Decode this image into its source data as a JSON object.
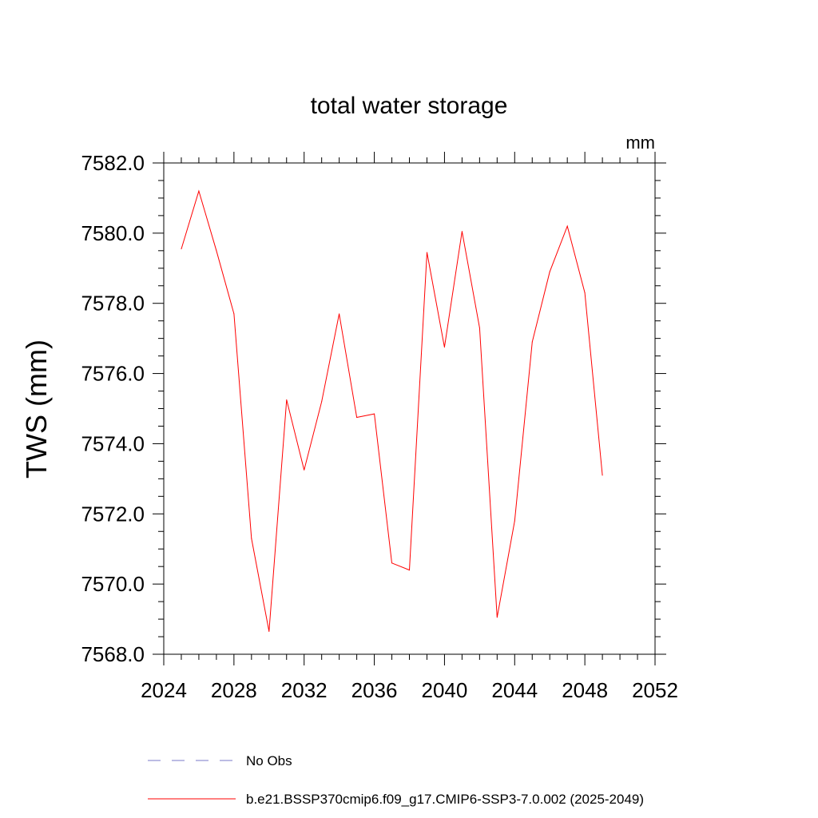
{
  "chart_data": {
    "type": "line",
    "title": "total water storage",
    "units": "mm",
    "xlabel": "",
    "ylabel": "TWS  (mm)",
    "xlim": [
      2024,
      2052
    ],
    "ylim": [
      7568,
      7582
    ],
    "x_ticks": [
      2024,
      2028,
      2032,
      2036,
      2040,
      2044,
      2048,
      2052
    ],
    "x_tick_labels": [
      "2024",
      "2028",
      "2032",
      "2036",
      "2040",
      "2044",
      "2048",
      "2052"
    ],
    "y_ticks": [
      7568,
      7570,
      7572,
      7574,
      7576,
      7578,
      7580,
      7582
    ],
    "y_tick_labels": [
      "7568.0",
      "7570.0",
      "7572.0",
      "7574.0",
      "7576.0",
      "7578.0",
      "7580.0",
      "7582.0"
    ],
    "grid": false,
    "series": [
      {
        "name": "b.e21.BSSP370cmip6.f09_g17.CMIP6-SSP3-7.0.002 (2025-2049)",
        "color": "#ff0000",
        "dash": "solid",
        "x": [
          2025,
          2026,
          2027,
          2028,
          2029,
          2030,
          2031,
          2032,
          2033,
          2034,
          2035,
          2036,
          2037,
          2038,
          2039,
          2040,
          2041,
          2042,
          2043,
          2044,
          2045,
          2046,
          2047,
          2048,
          2049
        ],
        "values": [
          7579.55,
          7581.2,
          7579.5,
          7577.7,
          7571.3,
          7568.65,
          7575.25,
          7573.25,
          7575.2,
          7577.7,
          7574.75,
          7574.85,
          7570.6,
          7570.4,
          7579.45,
          7576.75,
          7580.05,
          7577.3,
          7569.05,
          7571.8,
          7576.9,
          7578.9,
          7580.2,
          7578.3,
          7573.1
        ]
      }
    ],
    "legend": [
      {
        "label": "No Obs",
        "color": "#7a7ac8",
        "dash": "dashed"
      },
      {
        "label": "b.e21.BSSP370cmip6.f09_g17.CMIP6-SSP3-7.0.002 (2025-2049)",
        "color": "#ff0000",
        "dash": "solid"
      }
    ],
    "legend_position": "bottom"
  }
}
